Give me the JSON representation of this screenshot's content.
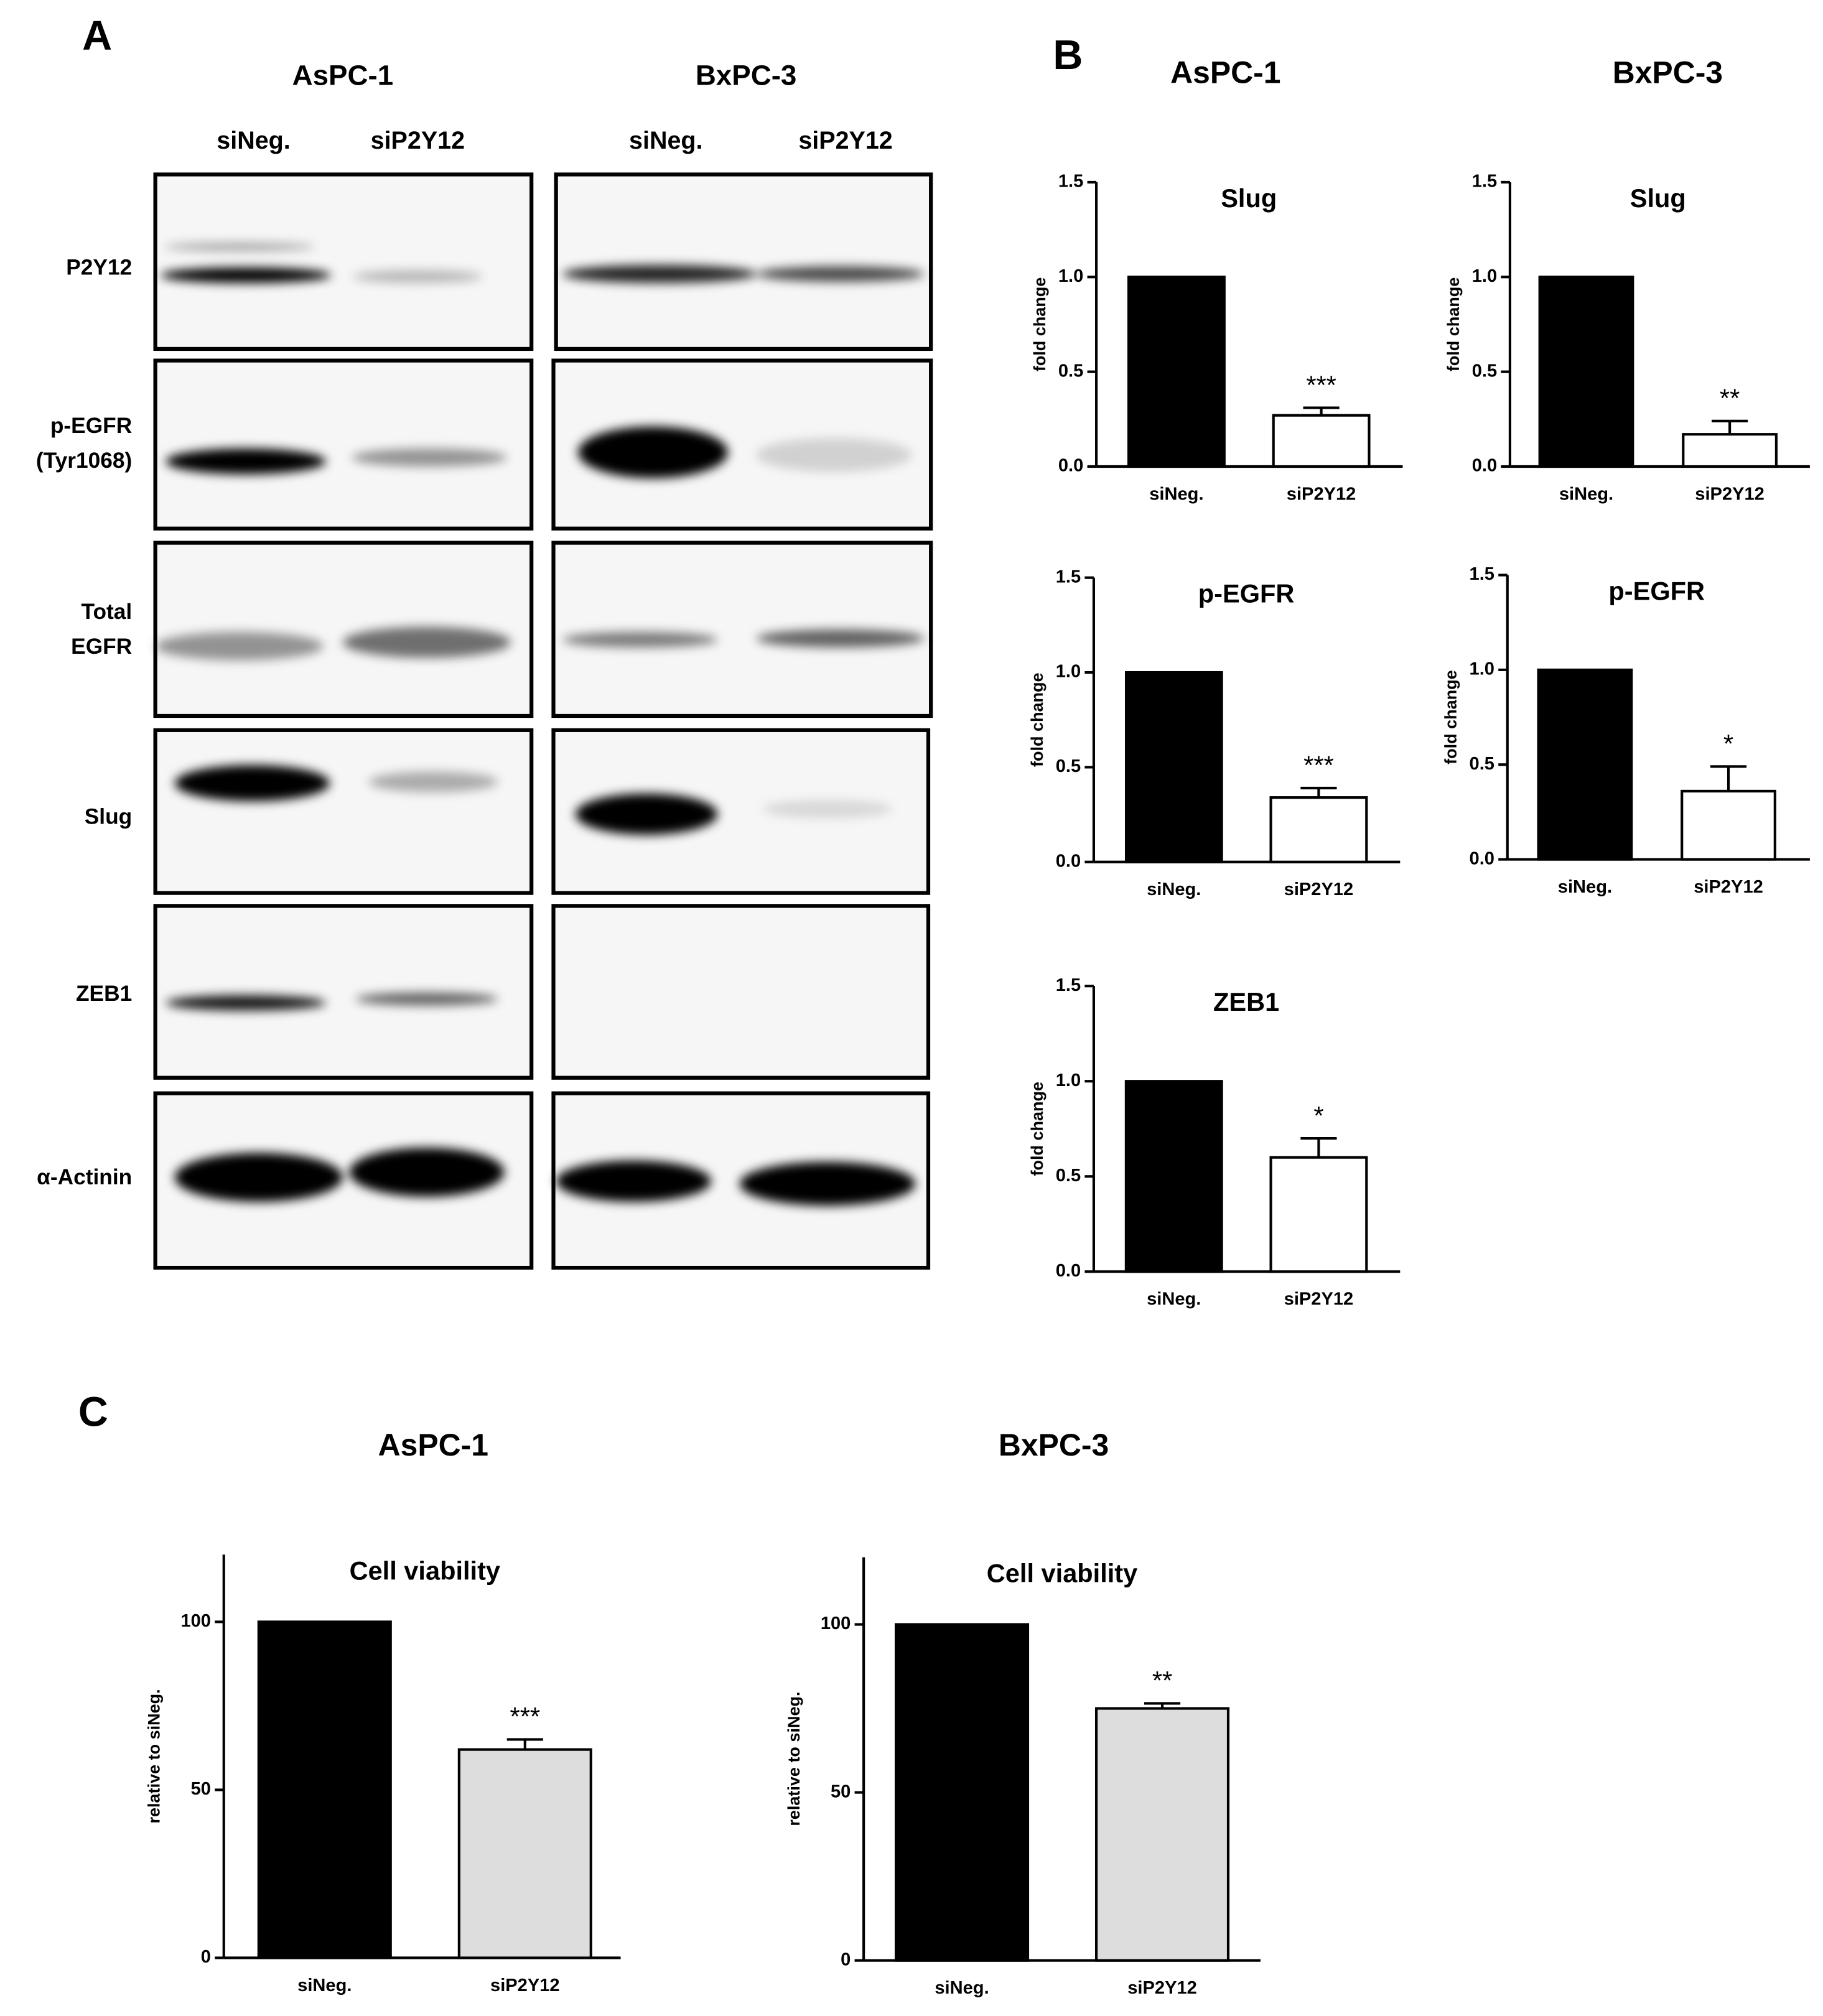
{
  "panel_labels": [
    "A",
    "B",
    "C"
  ],
  "blot": {
    "cell_lines": [
      "AsPC-1",
      "BxPC-3"
    ],
    "lanes": [
      "siNeg.",
      "siP2Y12",
      "siNeg.",
      "siP2Y12"
    ],
    "rows": [
      [
        "P2Y12"
      ],
      [
        "p-EGFR",
        "(Tyr1068)"
      ],
      [
        "Total",
        "EGFR"
      ],
      [
        "Slug"
      ],
      [
        "ZEB1"
      ],
      [
        "α-Actinin"
      ]
    ]
  },
  "panel_b_headers": [
    "AsPC-1",
    "BxPC-3"
  ],
  "panel_c_headers": [
    "AsPC-1",
    "BxPC-3"
  ],
  "chart_data": [
    {
      "type": "bar",
      "title": "Slug",
      "ylabel": "fold change",
      "categories": [
        "siNeg.",
        "siP2Y12"
      ],
      "values": [
        1,
        0.27
      ],
      "errors": [
        null,
        0.04
      ],
      "annotations": [
        null,
        "***"
      ],
      "colors": [
        "#000000",
        "#ffffff"
      ],
      "ylim": [
        0,
        1.5
      ],
      "yticks": [
        {
          "value": 0,
          "label": "0.0"
        },
        0.5,
        {
          "value": 1,
          "label": "1.0"
        },
        1.5
      ]
    },
    {
      "type": "bar",
      "title": "Slug",
      "ylabel": "fold change",
      "categories": [
        "siNeg.",
        "siP2Y12"
      ],
      "values": [
        1,
        0.17
      ],
      "errors": [
        null,
        0.07
      ],
      "annotations": [
        null,
        "**"
      ],
      "colors": [
        "#000000",
        "#ffffff"
      ],
      "ylim": [
        0,
        1.5
      ],
      "yticks": [
        {
          "value": 0,
          "label": "0.0"
        },
        0.5,
        {
          "value": 1,
          "label": "1.0"
        },
        1.5
      ]
    },
    {
      "type": "bar",
      "title": "p-EGFR",
      "ylabel": "fold change",
      "categories": [
        "siNeg.",
        "siP2Y12"
      ],
      "values": [
        1,
        0.34
      ],
      "errors": [
        null,
        0.05
      ],
      "annotations": [
        null,
        "***"
      ],
      "colors": [
        "#000000",
        "#ffffff"
      ],
      "ylim": [
        0,
        1.5
      ],
      "yticks": [
        {
          "value": 0,
          "label": "0.0"
        },
        0.5,
        {
          "value": 1,
          "label": "1.0"
        },
        1.5
      ]
    },
    {
      "type": "bar",
      "title": "p-EGFR",
      "ylabel": "fold change",
      "categories": [
        "siNeg.",
        "siP2Y12"
      ],
      "values": [
        1,
        0.36
      ],
      "errors": [
        null,
        0.13
      ],
      "annotations": [
        null,
        "*"
      ],
      "colors": [
        "#000000",
        "#ffffff"
      ],
      "ylim": [
        0,
        1.5
      ],
      "yticks": [
        {
          "value": 0,
          "label": "0.0"
        },
        0.5,
        {
          "value": 1,
          "label": "1.0"
        },
        1.5
      ]
    },
    {
      "type": "bar",
      "title": "ZEB1",
      "ylabel": "fold change",
      "categories": [
        "siNeg.",
        "siP2Y12"
      ],
      "values": [
        1,
        0.6
      ],
      "errors": [
        null,
        0.1
      ],
      "annotations": [
        null,
        "*"
      ],
      "colors": [
        "#000000",
        "#ffffff"
      ],
      "ylim": [
        0,
        1.5
      ],
      "yticks": [
        {
          "value": 0,
          "label": "0.0"
        },
        0.5,
        {
          "value": 1,
          "label": "1.0"
        },
        1.5
      ]
    },
    {
      "type": "bar",
      "title": "Cell viability",
      "ylabel": "relative to siNeg.",
      "categories": [
        "siNeg.",
        "siP2Y12"
      ],
      "values": [
        100,
        62
      ],
      "errors": [
        null,
        3
      ],
      "annotations": [
        null,
        "***"
      ],
      "colors": [
        "#000000",
        "#dddddd"
      ],
      "ylim": [
        0,
        120
      ],
      "yticks": [
        0,
        50,
        100
      ]
    },
    {
      "type": "bar",
      "title": "Cell viability",
      "ylabel": "relative to siNeg.",
      "categories": [
        "siNeg.",
        "siP2Y12"
      ],
      "values": [
        100,
        75
      ],
      "errors": [
        null,
        1.5
      ],
      "annotations": [
        null,
        "**"
      ],
      "colors": [
        "#000000",
        "#dddddd"
      ],
      "ylim": [
        0,
        120
      ],
      "yticks": [
        0,
        50,
        100
      ]
    }
  ]
}
